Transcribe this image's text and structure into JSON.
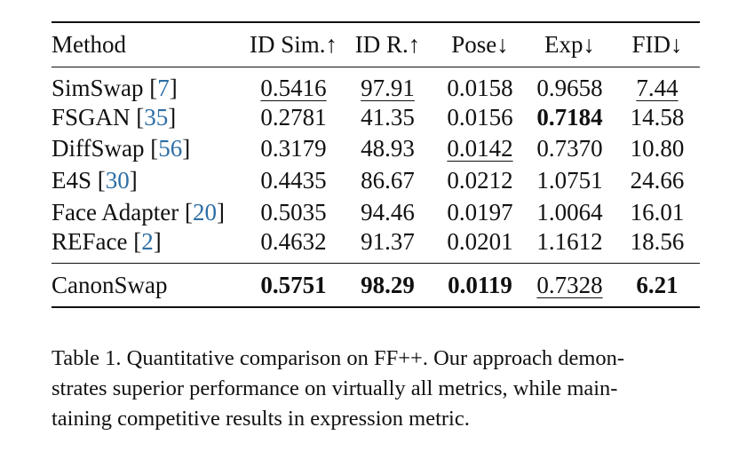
{
  "table": {
    "columns": [
      "Method",
      "ID Sim.↑",
      "ID R.↑",
      "Pose↓",
      "Exp↓",
      "FID↓"
    ],
    "rows": [
      {
        "name": "SimSwap",
        "cite": "7",
        "cells": [
          {
            "v": "0.5416",
            "ul": true
          },
          {
            "v": "97.91",
            "ul": true
          },
          {
            "v": "0.0158"
          },
          {
            "v": "0.9658"
          },
          {
            "v": "7.44",
            "ul": true
          }
        ]
      },
      {
        "name": "FSGAN",
        "cite": "35",
        "cells": [
          {
            "v": "0.2781"
          },
          {
            "v": "41.35"
          },
          {
            "v": "0.0156"
          },
          {
            "v": "0.7184",
            "b": true
          },
          {
            "v": "14.58"
          }
        ]
      },
      {
        "name": "DiffSwap",
        "cite": "56",
        "cells": [
          {
            "v": "0.3179"
          },
          {
            "v": "48.93"
          },
          {
            "v": "0.0142",
            "ul": true
          },
          {
            "v": "0.7370"
          },
          {
            "v": "10.80"
          }
        ]
      },
      {
        "name": "E4S",
        "cite": "30",
        "cells": [
          {
            "v": "0.4435"
          },
          {
            "v": "86.67"
          },
          {
            "v": "0.0212"
          },
          {
            "v": "1.0751"
          },
          {
            "v": "24.66"
          }
        ]
      },
      {
        "name": "Face Adapter",
        "cite": "20",
        "cells": [
          {
            "v": "0.5035"
          },
          {
            "v": "94.46"
          },
          {
            "v": "0.0197"
          },
          {
            "v": "1.0064"
          },
          {
            "v": "16.01"
          }
        ]
      },
      {
        "name": "REFace",
        "cite": "2",
        "cells": [
          {
            "v": "0.4632"
          },
          {
            "v": "91.37"
          },
          {
            "v": "0.0201"
          },
          {
            "v": "1.1612"
          },
          {
            "v": "18.56"
          }
        ]
      }
    ],
    "ours": {
      "name": "CanonSwap",
      "cells": [
        {
          "v": "0.5751",
          "b": true
        },
        {
          "v": "98.29",
          "b": true
        },
        {
          "v": "0.0119",
          "b": true
        },
        {
          "v": "0.7328",
          "ul": true
        },
        {
          "v": "6.21",
          "b": true
        }
      ]
    }
  },
  "caption": {
    "lines": [
      "Table 1. Quantitative comparison on FF++. Our approach demon-",
      "strates superior performance on virtually all metrics, while main-",
      "taining competitive results in expression metric."
    ]
  },
  "colors": {
    "citation": "#2d6ea5",
    "text": "#111111",
    "background": "#ffffff"
  }
}
